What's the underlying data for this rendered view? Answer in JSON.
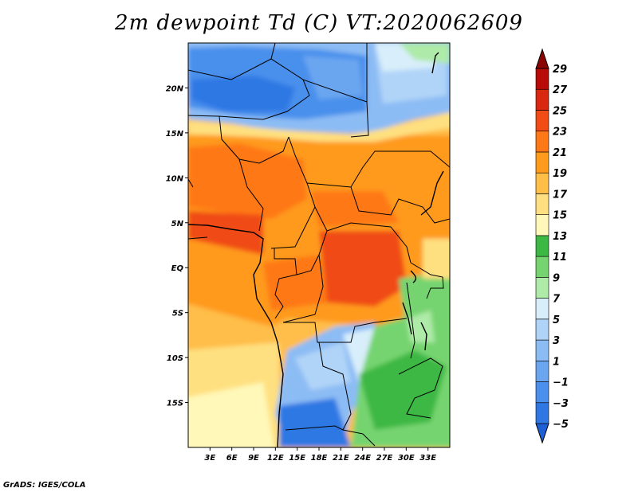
{
  "title": "2m dewpoint Td (C) VT:2020062609",
  "credit": "GrADS: IGES/COLA",
  "map": {
    "lon_range": [
      0,
      36
    ],
    "lat_range": [
      -20,
      25
    ],
    "lat_ticks": [
      {
        "value": 20,
        "label": "20N"
      },
      {
        "value": 15,
        "label": "15N"
      },
      {
        "value": 10,
        "label": "10N"
      },
      {
        "value": 5,
        "label": "5N"
      },
      {
        "value": 0,
        "label": "EQ"
      },
      {
        "value": -5,
        "label": "5S"
      },
      {
        "value": -10,
        "label": "10S"
      },
      {
        "value": -15,
        "label": "15S"
      }
    ],
    "lon_ticks": [
      {
        "value": 3,
        "label": "3E"
      },
      {
        "value": 6,
        "label": "6E"
      },
      {
        "value": 9,
        "label": "9E"
      },
      {
        "value": 12,
        "label": "12E"
      },
      {
        "value": 15,
        "label": "15E"
      },
      {
        "value": 18,
        "label": "18E"
      },
      {
        "value": 21,
        "label": "21E"
      },
      {
        "value": 24,
        "label": "24E"
      },
      {
        "value": 27,
        "label": "27E"
      },
      {
        "value": 30,
        "label": "30E"
      },
      {
        "value": 33,
        "label": "33E"
      }
    ]
  },
  "colorbar": {
    "levels": [
      "-5",
      "-3",
      "-1",
      "1",
      "3",
      "5",
      "7",
      "9",
      "11",
      "13",
      "15",
      "17",
      "19",
      "21",
      "23",
      "25",
      "27",
      "29"
    ],
    "colors": [
      "#1f5fd6",
      "#2f78e4",
      "#4a90ec",
      "#6aa6f0",
      "#8cbcf4",
      "#b0d4f8",
      "#d8eefa",
      "#aeeaa8",
      "#76d470",
      "#3cb844",
      "#fff8b8",
      "#ffe080",
      "#ffbe48",
      "#ff9a1c",
      "#ff7818",
      "#f04c14",
      "#d82810",
      "#b80c08",
      "#8a0404"
    ]
  }
}
